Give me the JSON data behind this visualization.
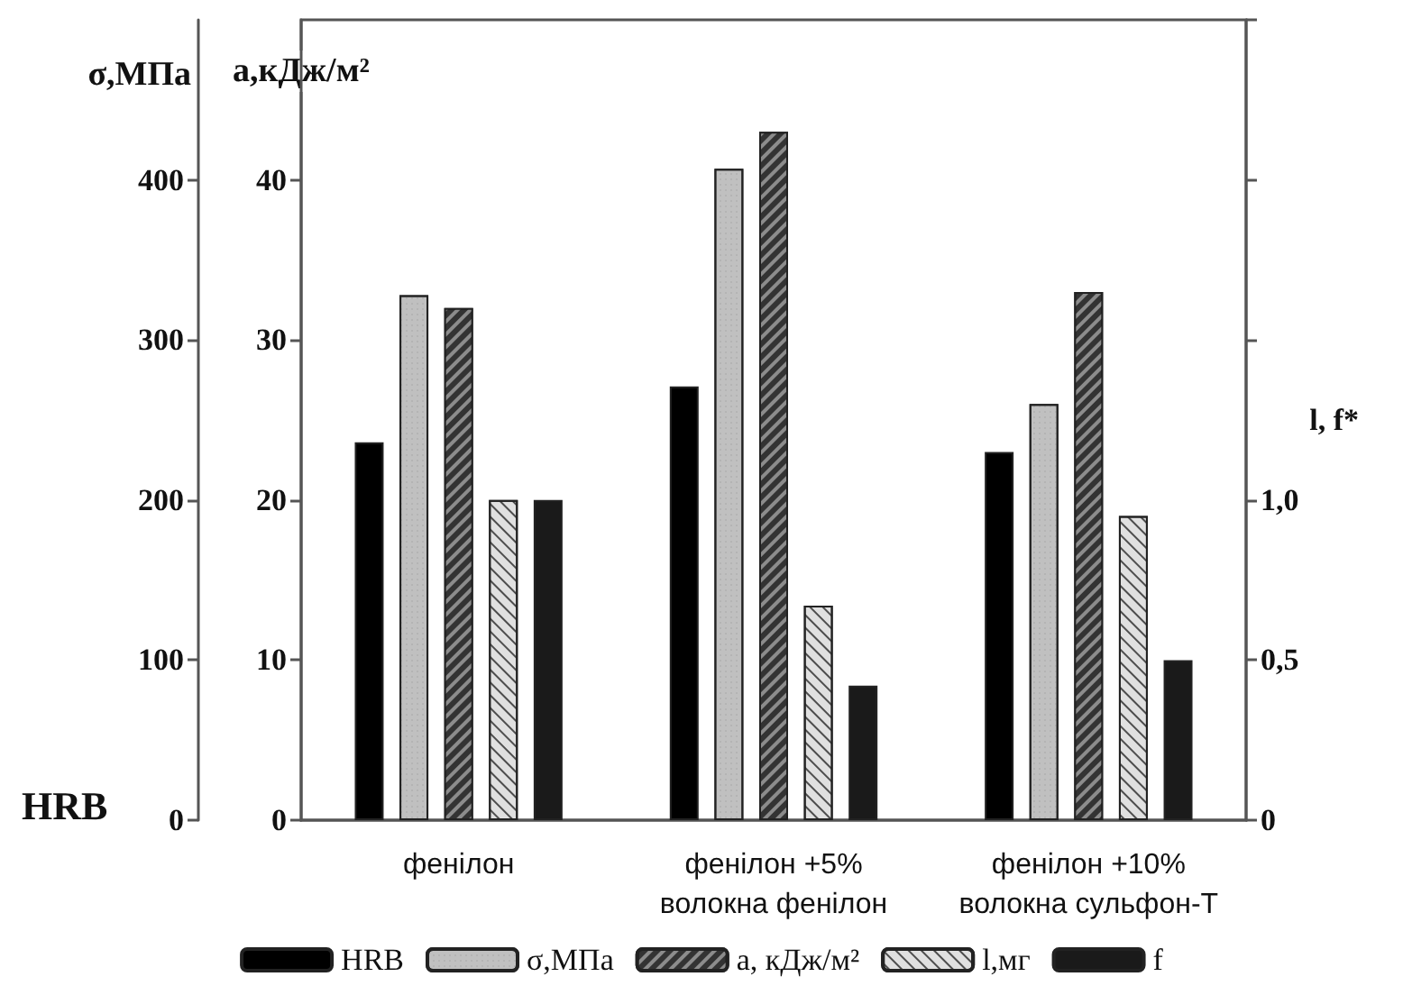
{
  "chart_data": {
    "type": "bar",
    "ylabel": "σ,МПа",
    "y2label": "a,кДж/м²",
    "y3label": "l, f*",
    "annotations": [
      "HRB"
    ],
    "categories": [
      "фенілон",
      "фенілон +5%\nволокна фенілон",
      "фенілон +10%\nволокна сульфон-Т"
    ],
    "series": [
      {
        "name": "HRB",
        "color": "#000000",
        "axis": "y",
        "values": [
          236,
          271,
          230
        ]
      },
      {
        "name": "σ,МПа",
        "color": "#c0c0c0",
        "axis": "y",
        "values": [
          328,
          407,
          260
        ]
      },
      {
        "name": "a, кДж/м²",
        "color": "#333333",
        "axis": "y2",
        "values": [
          32.0,
          43.0,
          33.0
        ]
      },
      {
        "name": "l,мг",
        "color": "#e0e0e0",
        "axis": "y3",
        "values": [
          1.0,
          0.67,
          0.95
        ]
      },
      {
        "name": "f",
        "color": "#1a1a1a",
        "axis": "y3",
        "values": [
          1.0,
          0.42,
          0.5
        ]
      }
    ],
    "ylim": [
      0,
      500
    ],
    "yticks": [
      0,
      100,
      200,
      300,
      400
    ],
    "y2lim": [
      0,
      50
    ],
    "y2ticks": [
      0,
      10,
      20,
      30,
      40
    ],
    "y3lim": [
      0,
      2.5
    ],
    "y3ticks": [
      0,
      {
        "value": 0.5,
        "label": "0,5"
      },
      {
        "value": 1.0,
        "label": "1,0"
      },
      {
        "value": 1.5,
        "label": null
      },
      {
        "value": 2.0,
        "label": null
      },
      {
        "value": 2.5,
        "label": null
      }
    ],
    "grid": false,
    "legend": "bottom"
  }
}
